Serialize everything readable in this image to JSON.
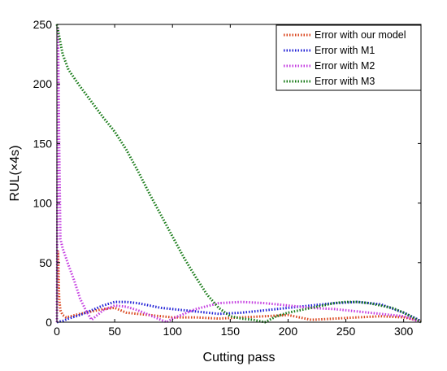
{
  "chart_data": {
    "type": "line",
    "title": "",
    "xlabel": "Cutting pass",
    "ylabel": "RUL(×4s)",
    "xlim": [
      0,
      315
    ],
    "ylim": [
      0,
      250
    ],
    "x_ticks": [
      0,
      50,
      100,
      150,
      200,
      250,
      300
    ],
    "y_ticks": [
      0,
      50,
      100,
      150,
      200,
      250
    ],
    "grid": false,
    "legend_position": "top-right",
    "line_style": "dotted",
    "series": [
      {
        "name": "Error with our model",
        "color": "#d9431a",
        "x": [
          0,
          1,
          2,
          3,
          5,
          8,
          12,
          20,
          30,
          40,
          50,
          60,
          70,
          80,
          90,
          100,
          120,
          140,
          160,
          180,
          200,
          220,
          240,
          260,
          280,
          300,
          315
        ],
        "y": [
          0,
          60,
          20,
          10,
          6,
          4,
          5,
          7,
          9,
          11,
          12,
          8,
          7,
          6,
          5,
          4,
          4,
          3,
          4,
          5,
          6,
          2,
          3,
          4,
          5,
          4,
          1
        ]
      },
      {
        "name": "Error with M1",
        "color": "#1f1fd6",
        "x": [
          0,
          5,
          10,
          20,
          30,
          40,
          50,
          60,
          70,
          80,
          90,
          100,
          120,
          140,
          160,
          180,
          200,
          220,
          240,
          260,
          280,
          300,
          315
        ],
        "y": [
          0,
          1,
          3,
          6,
          10,
          14,
          17,
          17,
          16,
          14,
          12,
          11,
          9,
          7,
          8,
          10,
          12,
          14,
          16,
          17,
          15,
          8,
          1
        ]
      },
      {
        "name": "Error with M2",
        "color": "#c43be0",
        "x": [
          0,
          1,
          2,
          3,
          5,
          10,
          15,
          20,
          25,
          30,
          35,
          40,
          50,
          60,
          70,
          80,
          90,
          95,
          100,
          110,
          120,
          140,
          160,
          180,
          200,
          220,
          240,
          260,
          280,
          300,
          315
        ],
        "y": [
          0,
          248,
          150,
          70,
          62,
          48,
          35,
          20,
          10,
          2,
          6,
          10,
          14,
          13,
          10,
          6,
          2,
          0,
          3,
          7,
          11,
          16,
          17,
          16,
          14,
          12,
          11,
          9,
          7,
          5,
          0
        ]
      },
      {
        "name": "Error with M3",
        "color": "#137813",
        "x": [
          0,
          5,
          10,
          20,
          30,
          40,
          50,
          60,
          70,
          80,
          90,
          100,
          110,
          120,
          130,
          140,
          150,
          160,
          170,
          180,
          190,
          200,
          210,
          220,
          230,
          240,
          250,
          260,
          270,
          280,
          290,
          300,
          310,
          315
        ],
        "y": [
          250,
          225,
          212,
          198,
          185,
          172,
          160,
          145,
          127,
          108,
          90,
          72,
          54,
          38,
          23,
          12,
          5,
          3,
          2,
          0,
          5,
          8,
          10,
          12,
          14,
          16,
          17,
          17,
          16,
          14,
          12,
          8,
          3,
          0
        ]
      }
    ]
  }
}
